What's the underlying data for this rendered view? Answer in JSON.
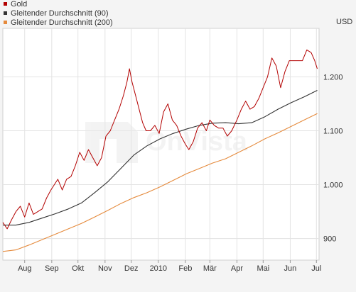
{
  "chart_data": {
    "type": "line",
    "currency": "USD",
    "ylim": [
      860,
      1290
    ],
    "yticks": [
      {
        "value": 900,
        "label": "900"
      },
      {
        "value": 1000,
        "label": "1.000"
      },
      {
        "value": 1100,
        "label": "1.100"
      },
      {
        "value": 1200,
        "label": "1.200"
      }
    ],
    "xlim": [
      "2009-07-07",
      "2010-07-04"
    ],
    "xticks": [
      {
        "date": "2009-08-01",
        "label": "Aug"
      },
      {
        "date": "2009-09-01",
        "label": "Sep"
      },
      {
        "date": "2009-10-01",
        "label": "Okt"
      },
      {
        "date": "2009-11-01",
        "label": "Nov"
      },
      {
        "date": "2009-12-01",
        "label": "Dez"
      },
      {
        "date": "2010-01-01",
        "label": "2010"
      },
      {
        "date": "2010-02-01",
        "label": "Feb"
      },
      {
        "date": "2010-03-01",
        "label": "Mär"
      },
      {
        "date": "2010-04-01",
        "label": "Apr"
      },
      {
        "date": "2010-05-01",
        "label": "Mai"
      },
      {
        "date": "2010-06-01",
        "label": "Jun"
      },
      {
        "date": "2010-07-01",
        "label": "Jul"
      }
    ],
    "grid": true,
    "legend_position": "top-left",
    "watermark": "OnVista",
    "series": [
      {
        "name": "Gold",
        "color": "#b30000",
        "points": [
          [
            "2009-07-07",
            930
          ],
          [
            "2009-07-12",
            918
          ],
          [
            "2009-07-17",
            935
          ],
          [
            "2009-07-22",
            950
          ],
          [
            "2009-07-27",
            960
          ],
          [
            "2009-08-01",
            940
          ],
          [
            "2009-08-06",
            966
          ],
          [
            "2009-08-11",
            945
          ],
          [
            "2009-08-16",
            950
          ],
          [
            "2009-08-21",
            955
          ],
          [
            "2009-08-26",
            975
          ],
          [
            "2009-08-31",
            990
          ],
          [
            "2009-09-04",
            1000
          ],
          [
            "2009-09-08",
            1010
          ],
          [
            "2009-09-13",
            990
          ],
          [
            "2009-09-18",
            1010
          ],
          [
            "2009-09-23",
            1015
          ],
          [
            "2009-09-28",
            1035
          ],
          [
            "2009-10-03",
            1060
          ],
          [
            "2009-10-08",
            1045
          ],
          [
            "2009-10-13",
            1065
          ],
          [
            "2009-10-18",
            1050
          ],
          [
            "2009-10-23",
            1035
          ],
          [
            "2009-10-28",
            1050
          ],
          [
            "2009-11-02",
            1090
          ],
          [
            "2009-11-07",
            1100
          ],
          [
            "2009-11-12",
            1120
          ],
          [
            "2009-11-17",
            1140
          ],
          [
            "2009-11-22",
            1165
          ],
          [
            "2009-11-26",
            1190
          ],
          [
            "2009-11-29",
            1215
          ],
          [
            "2009-12-02",
            1190
          ],
          [
            "2009-12-06",
            1165
          ],
          [
            "2009-12-10",
            1140
          ],
          [
            "2009-12-14",
            1115
          ],
          [
            "2009-12-18",
            1100
          ],
          [
            "2009-12-23",
            1100
          ],
          [
            "2009-12-28",
            1110
          ],
          [
            "2010-01-02",
            1095
          ],
          [
            "2010-01-07",
            1135
          ],
          [
            "2010-01-12",
            1150
          ],
          [
            "2010-01-17",
            1120
          ],
          [
            "2010-01-22",
            1110
          ],
          [
            "2010-01-27",
            1090
          ],
          [
            "2010-02-01",
            1075
          ],
          [
            "2010-02-05",
            1065
          ],
          [
            "2010-02-10",
            1080
          ],
          [
            "2010-02-15",
            1105
          ],
          [
            "2010-02-20",
            1115
          ],
          [
            "2010-02-25",
            1100
          ],
          [
            "2010-03-01",
            1120
          ],
          [
            "2010-03-06",
            1110
          ],
          [
            "2010-03-11",
            1105
          ],
          [
            "2010-03-16",
            1105
          ],
          [
            "2010-03-21",
            1090
          ],
          [
            "2010-03-26",
            1100
          ],
          [
            "2010-04-01",
            1120
          ],
          [
            "2010-04-06",
            1140
          ],
          [
            "2010-04-11",
            1155
          ],
          [
            "2010-04-16",
            1140
          ],
          [
            "2010-04-21",
            1145
          ],
          [
            "2010-04-26",
            1160
          ],
          [
            "2010-05-01",
            1180
          ],
          [
            "2010-05-06",
            1200
          ],
          [
            "2010-05-11",
            1235
          ],
          [
            "2010-05-16",
            1220
          ],
          [
            "2010-05-21",
            1180
          ],
          [
            "2010-05-26",
            1210
          ],
          [
            "2010-05-31",
            1230
          ],
          [
            "2010-06-05",
            1230
          ],
          [
            "2010-06-10",
            1230
          ],
          [
            "2010-06-15",
            1230
          ],
          [
            "2010-06-20",
            1250
          ],
          [
            "2010-06-25",
            1245
          ],
          [
            "2010-06-29",
            1230
          ],
          [
            "2010-07-02",
            1215
          ]
        ]
      },
      {
        "name": "Gleitender Durchschnitt (90)",
        "color": "#333333",
        "points": [
          [
            "2009-07-07",
            925
          ],
          [
            "2009-07-22",
            925
          ],
          [
            "2009-08-06",
            930
          ],
          [
            "2009-08-21",
            938
          ],
          [
            "2009-09-05",
            946
          ],
          [
            "2009-09-20",
            955
          ],
          [
            "2009-10-05",
            966
          ],
          [
            "2009-10-20",
            985
          ],
          [
            "2009-11-04",
            1005
          ],
          [
            "2009-11-19",
            1030
          ],
          [
            "2009-12-04",
            1055
          ],
          [
            "2009-12-19",
            1072
          ],
          [
            "2010-01-03",
            1085
          ],
          [
            "2010-01-18",
            1095
          ],
          [
            "2010-02-02",
            1103
          ],
          [
            "2010-02-17",
            1110
          ],
          [
            "2010-03-04",
            1114
          ],
          [
            "2010-03-19",
            1115
          ],
          [
            "2010-04-03",
            1113
          ],
          [
            "2010-04-18",
            1115
          ],
          [
            "2010-05-03",
            1126
          ],
          [
            "2010-05-18",
            1140
          ],
          [
            "2010-06-02",
            1152
          ],
          [
            "2010-06-17",
            1163
          ],
          [
            "2010-07-02",
            1175
          ]
        ]
      },
      {
        "name": "Gleitender Durchschnitt (200)",
        "color": "#e58a3c",
        "points": [
          [
            "2009-07-07",
            876
          ],
          [
            "2009-07-22",
            879
          ],
          [
            "2009-08-06",
            888
          ],
          [
            "2009-08-21",
            898
          ],
          [
            "2009-09-05",
            908
          ],
          [
            "2009-09-20",
            918
          ],
          [
            "2009-10-05",
            928
          ],
          [
            "2009-10-20",
            940
          ],
          [
            "2009-11-04",
            952
          ],
          [
            "2009-11-19",
            965
          ],
          [
            "2009-12-04",
            976
          ],
          [
            "2009-12-19",
            985
          ],
          [
            "2010-01-03",
            996
          ],
          [
            "2010-01-18",
            1008
          ],
          [
            "2010-02-02",
            1020
          ],
          [
            "2010-02-17",
            1030
          ],
          [
            "2010-03-04",
            1040
          ],
          [
            "2010-03-19",
            1048
          ],
          [
            "2010-04-03",
            1060
          ],
          [
            "2010-04-18",
            1072
          ],
          [
            "2010-05-03",
            1085
          ],
          [
            "2010-05-18",
            1096
          ],
          [
            "2010-06-02",
            1108
          ],
          [
            "2010-06-17",
            1120
          ],
          [
            "2010-07-02",
            1132
          ]
        ]
      }
    ]
  }
}
